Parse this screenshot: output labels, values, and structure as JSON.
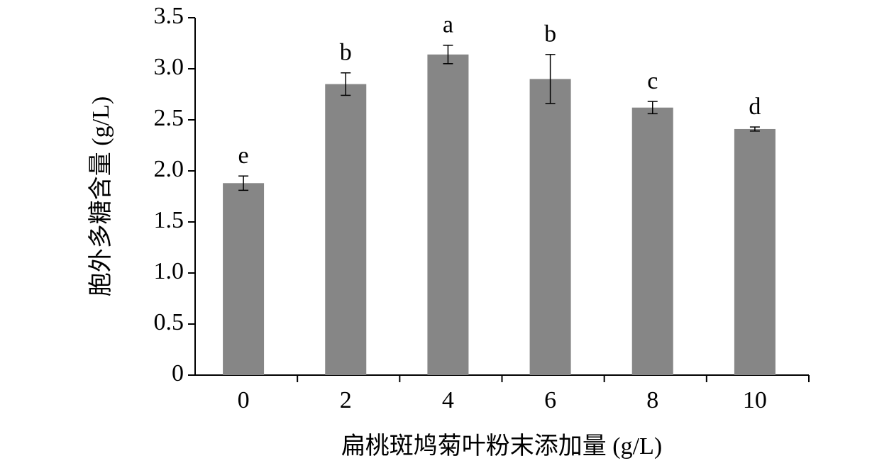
{
  "chart_data": {
    "type": "bar",
    "x_label": "扁桃斑鸠菊叶粉末添加量 (g/L)",
    "y_label": "胞外多糖含量 (g/L)",
    "categories": [
      "0",
      "2",
      "4",
      "6",
      "8",
      "10"
    ],
    "values": [
      1.88,
      2.85,
      3.14,
      2.9,
      2.62,
      2.41
    ],
    "errors": [
      0.07,
      0.11,
      0.09,
      0.24,
      0.06,
      0.02
    ],
    "annotations": [
      "e",
      "b",
      "a",
      "b",
      "c",
      "d"
    ],
    "color": "#868686",
    "ylim": [
      0,
      3.5
    ],
    "yticks": [
      0,
      0.5,
      {
        "value": 1,
        "label": "1.0"
      },
      1.5,
      {
        "value": 2,
        "label": "2.0"
      },
      2.5,
      {
        "value": 3,
        "label": "3.0"
      },
      3.5
    ]
  }
}
